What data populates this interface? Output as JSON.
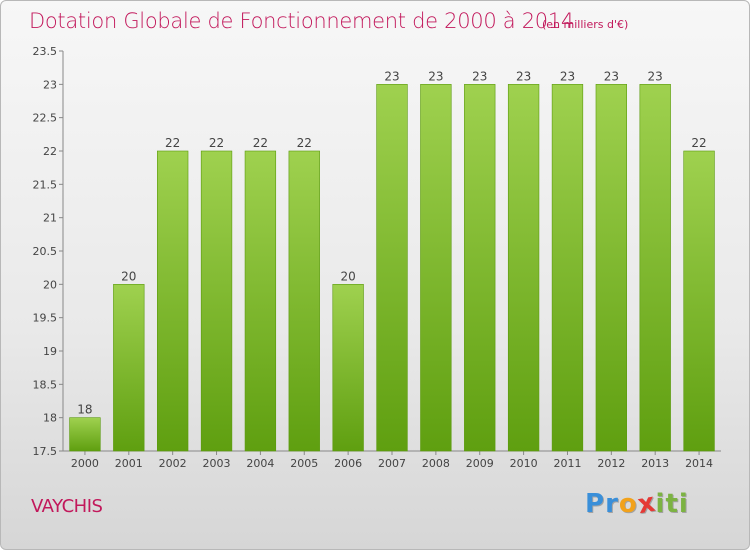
{
  "chart_data": {
    "type": "bar",
    "title": "Dotation Globale de Fonctionnement de 2000 à 2014",
    "subtitle": "(en milliers d'€)",
    "categories": [
      "2000",
      "2001",
      "2002",
      "2003",
      "2004",
      "2005",
      "2006",
      "2007",
      "2008",
      "2009",
      "2010",
      "2011",
      "2012",
      "2013",
      "2014"
    ],
    "values": [
      18,
      20,
      22,
      22,
      22,
      22,
      20,
      23,
      23,
      23,
      23,
      23,
      23,
      23,
      22
    ],
    "data_labels": [
      "18",
      "20",
      "22",
      "22",
      "22",
      "22",
      "20",
      "23",
      "23",
      "23",
      "23",
      "23",
      "23",
      "23",
      "22"
    ],
    "ylim": [
      17.5,
      23.5
    ],
    "yticks": [
      "17.5",
      "18",
      "18.5",
      "19",
      "19.5",
      "20",
      "20.5",
      "21",
      "21.5",
      "22",
      "22.5",
      "23",
      "23.5"
    ],
    "grid": false,
    "bar_color": "#8cc63f",
    "bar_color_dark": "#5e9e0e"
  },
  "commune": "VAYCHIS",
  "logo": {
    "letters": [
      "P",
      "r",
      "o",
      "x",
      "i",
      "t",
      "i"
    ],
    "colors": [
      "#3a8fd9",
      "#3a8fd9",
      "#f2a21b",
      "#e53935",
      "#7cb342",
      "#7cb342",
      "#7cb342"
    ]
  }
}
